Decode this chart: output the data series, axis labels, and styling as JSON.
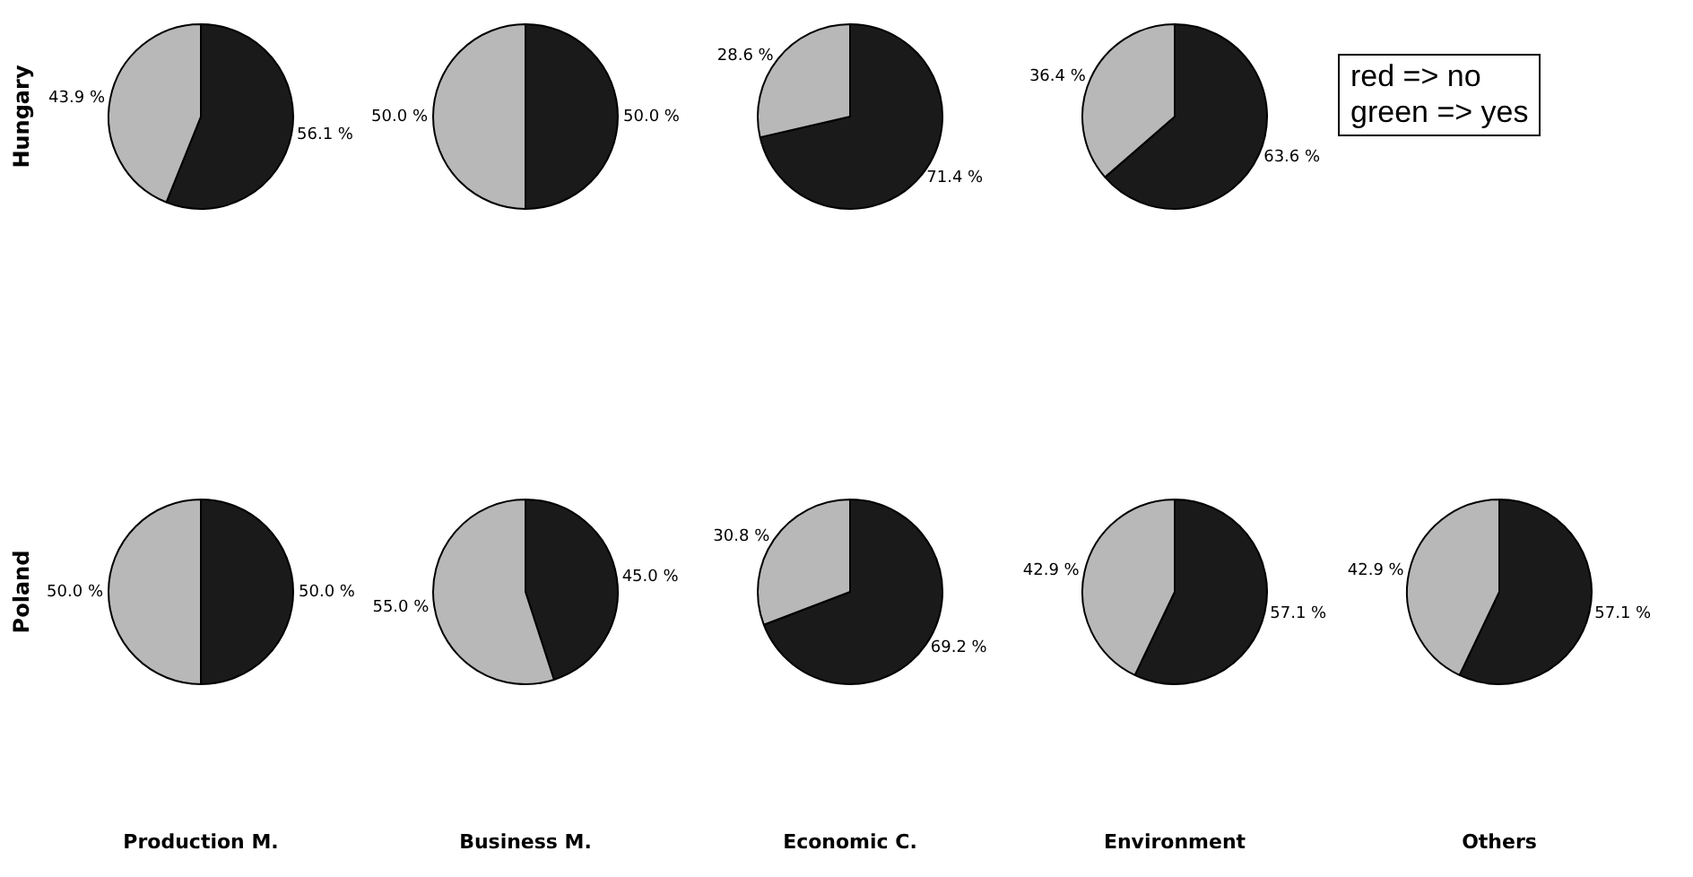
{
  "chart_data": [
    {
      "type": "pie",
      "ylabel": "Hungary",
      "categories": [
        null,
        null
      ],
      "values": [
        56.1,
        43.9
      ],
      "colors": [
        "#1a1a1a",
        "#b8b8b8"
      ],
      "value_labels": [
        "56.1 %",
        "43.9 %"
      ]
    },
    {
      "type": "pie",
      "categories": [
        null,
        null
      ],
      "values": [
        50.0,
        50.0
      ],
      "colors": [
        "#1a1a1a",
        "#b8b8b8"
      ],
      "value_labels": [
        "50.0 %",
        "50.0 %"
      ]
    },
    {
      "type": "pie",
      "categories": [
        null,
        null
      ],
      "values": [
        71.4,
        28.6
      ],
      "colors": [
        "#1a1a1a",
        "#b8b8b8"
      ],
      "value_labels": [
        "71.4 %",
        "28.6 %"
      ]
    },
    {
      "type": "pie",
      "categories": [
        null,
        null
      ],
      "values": [
        63.6,
        36.4
      ],
      "colors": [
        "#1a1a1a",
        "#b8b8b8"
      ],
      "value_labels": [
        "63.6 %",
        "36.4 %"
      ]
    },
    {
      "type": "other",
      "annotations": [
        "red => no",
        "green => yes"
      ]
    },
    {
      "type": "pie",
      "ylabel": "Poland",
      "xlabel": "Production M.",
      "categories": [
        null,
        null
      ],
      "values": [
        50.0,
        50.0
      ],
      "colors": [
        "#1a1a1a",
        "#b8b8b8"
      ],
      "value_labels": [
        "50.0 %",
        "50.0 %"
      ]
    },
    {
      "type": "pie",
      "xlabel": "Business M.",
      "categories": [
        null,
        null
      ],
      "values": [
        45.0,
        55.0
      ],
      "colors": [
        "#1a1a1a",
        "#b8b8b8"
      ],
      "value_labels": [
        "45.0 %",
        "55.0 %"
      ]
    },
    {
      "type": "pie",
      "xlabel": "Economic C.",
      "categories": [
        null,
        null
      ],
      "values": [
        69.2,
        30.8
      ],
      "colors": [
        "#1a1a1a",
        "#b8b8b8"
      ],
      "value_labels": [
        "69.2 %",
        "30.8 %"
      ]
    },
    {
      "type": "pie",
      "xlabel": "Environment",
      "categories": [
        null,
        null
      ],
      "values": [
        57.1,
        42.9
      ],
      "colors": [
        "#1a1a1a",
        "#b8b8b8"
      ],
      "value_labels": [
        "57.1 %",
        "42.9 %"
      ]
    },
    {
      "type": "pie",
      "xlabel": "Others",
      "categories": [
        null,
        null
      ],
      "values": [
        57.1,
        42.9
      ],
      "colors": [
        "#1a1a1a",
        "#b8b8b8"
      ],
      "value_labels": [
        "57.1 %",
        "42.9 %"
      ]
    }
  ]
}
